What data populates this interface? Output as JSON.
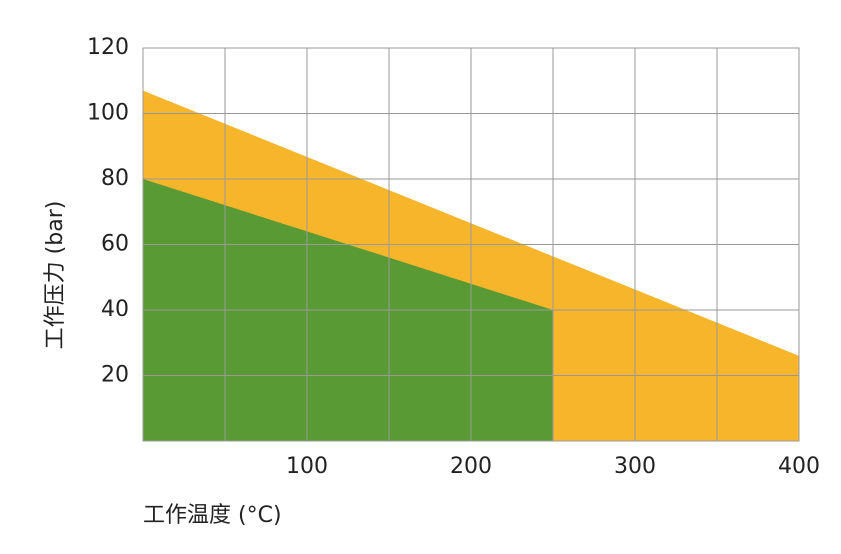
{
  "chart_data": {
    "type": "area",
    "xlabel": "工作温度 (°C)",
    "ylabel": "工作压力 (bar)",
    "xlim": [
      0,
      400
    ],
    "xticks": [
      100,
      200,
      300,
      400
    ],
    "xminor": [
      50,
      150,
      250,
      350
    ],
    "ylim": [
      0,
      120
    ],
    "yticks": [
      20,
      40,
      60,
      80,
      100,
      120
    ],
    "grid": true,
    "series": [
      {
        "color": "#f7b52c",
        "x": [
          0,
          400
        ],
        "values": [
          107,
          26
        ]
      },
      {
        "color": "#5a9a35",
        "x": [
          0,
          250,
          250
        ],
        "values": [
          80,
          40,
          0
        ]
      }
    ]
  }
}
